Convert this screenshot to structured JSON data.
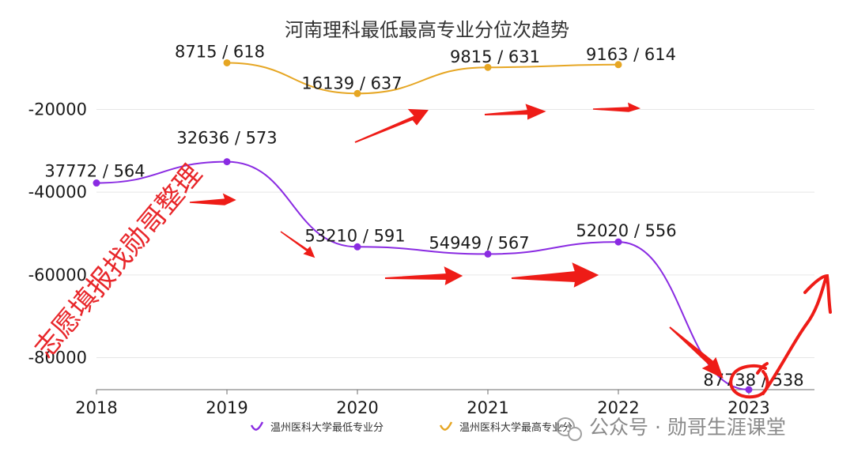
{
  "chart_data": {
    "type": "line",
    "title": "河南理科最低最高专业分位次趋势",
    "xlabel": "",
    "ylabel": "",
    "categories": [
      "2018",
      "2019",
      "2020",
      "2021",
      "2022",
      "2023"
    ],
    "ylim": [
      -87738,
      -5000
    ],
    "yticks": [
      -20000,
      -40000,
      -60000,
      -80000
    ],
    "grid": true,
    "legend_position": "bottom",
    "series": [
      {
        "name": "温州医科大学最低专业分",
        "color": "#8a2be2",
        "values": [
          -37772,
          -32636,
          -53210,
          -54949,
          -52020,
          -87738
        ],
        "labels": [
          "37772 / 564",
          "32636 / 573",
          "53210 / 591",
          "54949 / 567",
          "52020 / 556",
          "87738 / 538"
        ]
      },
      {
        "name": "温州医科大学最高专业分",
        "color": "#e6a623",
        "values": [
          null,
          -8715,
          -16139,
          -9815,
          -9163,
          null
        ],
        "labels": [
          "",
          "8715 / 618",
          "16139 / 637",
          "9815 / 631",
          "9163 / 614",
          ""
        ]
      }
    ]
  },
  "overlays": {
    "watermark": "志愿填报找勋哥整理",
    "wechat_logo": "wechat-icon",
    "wechat_account": "公众号 · 勋哥生涯课堂",
    "annotation_color": "#ee1c17"
  }
}
